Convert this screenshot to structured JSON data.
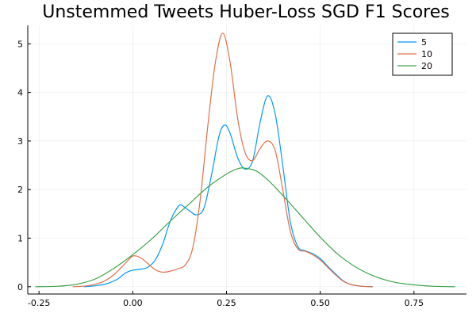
{
  "chart_data": {
    "type": "line",
    "title": "Unstemmed Tweets Huber-Loss SGD F1 Scores",
    "xlabel": "",
    "ylabel": "",
    "xlim": [
      -0.28,
      0.89
    ],
    "ylim": [
      -0.15,
      5.38
    ],
    "x_ticks": [
      -0.25,
      0.0,
      0.25,
      0.5,
      0.75
    ],
    "x_tick_labels": [
      "-0.25",
      "0.00",
      "0.25",
      "0.50",
      "0.75"
    ],
    "y_ticks": [
      0,
      1,
      2,
      3,
      4,
      5
    ],
    "y_tick_labels": [
      "0",
      "1",
      "2",
      "3",
      "4",
      "5"
    ],
    "grid": true,
    "legend_position": "top-right",
    "series": [
      {
        "name": "5",
        "color": "#009AFA",
        "points": [
          [
            -0.13,
            0.0
          ],
          [
            -0.1,
            0.02
          ],
          [
            -0.07,
            0.06
          ],
          [
            -0.04,
            0.16
          ],
          [
            -0.02,
            0.28
          ],
          [
            0.0,
            0.34
          ],
          [
            0.02,
            0.36
          ],
          [
            0.04,
            0.4
          ],
          [
            0.06,
            0.55
          ],
          [
            0.08,
            0.88
          ],
          [
            0.1,
            1.35
          ],
          [
            0.12,
            1.64
          ],
          [
            0.13,
            1.68
          ],
          [
            0.15,
            1.57
          ],
          [
            0.17,
            1.48
          ],
          [
            0.19,
            1.62
          ],
          [
            0.21,
            2.3
          ],
          [
            0.23,
            3.1
          ],
          [
            0.245,
            3.33
          ],
          [
            0.26,
            3.15
          ],
          [
            0.28,
            2.65
          ],
          [
            0.3,
            2.42
          ],
          [
            0.32,
            2.6
          ],
          [
            0.34,
            3.4
          ],
          [
            0.36,
            3.93
          ],
          [
            0.38,
            3.55
          ],
          [
            0.4,
            2.5
          ],
          [
            0.42,
            1.35
          ],
          [
            0.44,
            0.83
          ],
          [
            0.46,
            0.74
          ],
          [
            0.48,
            0.68
          ],
          [
            0.5,
            0.58
          ],
          [
            0.52,
            0.42
          ],
          [
            0.54,
            0.27
          ],
          [
            0.56,
            0.13
          ],
          [
            0.58,
            0.05
          ],
          [
            0.61,
            0.01
          ],
          [
            0.64,
            0.0
          ]
        ]
      },
      {
        "name": "10",
        "color": "#E26F46",
        "points": [
          [
            -0.16,
            0.0
          ],
          [
            -0.12,
            0.02
          ],
          [
            -0.08,
            0.1
          ],
          [
            -0.05,
            0.25
          ],
          [
            -0.02,
            0.48
          ],
          [
            0.0,
            0.63
          ],
          [
            0.02,
            0.6
          ],
          [
            0.04,
            0.48
          ],
          [
            0.06,
            0.35
          ],
          [
            0.08,
            0.3
          ],
          [
            0.1,
            0.32
          ],
          [
            0.12,
            0.37
          ],
          [
            0.14,
            0.45
          ],
          [
            0.16,
            0.8
          ],
          [
            0.18,
            1.8
          ],
          [
            0.2,
            3.3
          ],
          [
            0.22,
            4.6
          ],
          [
            0.24,
            5.22
          ],
          [
            0.26,
            4.6
          ],
          [
            0.28,
            3.45
          ],
          [
            0.3,
            2.75
          ],
          [
            0.32,
            2.6
          ],
          [
            0.34,
            2.85
          ],
          [
            0.36,
            3.0
          ],
          [
            0.38,
            2.8
          ],
          [
            0.4,
            2.0
          ],
          [
            0.42,
            1.15
          ],
          [
            0.44,
            0.78
          ],
          [
            0.46,
            0.73
          ],
          [
            0.48,
            0.66
          ],
          [
            0.5,
            0.55
          ],
          [
            0.52,
            0.4
          ],
          [
            0.54,
            0.25
          ],
          [
            0.56,
            0.12
          ],
          [
            0.58,
            0.05
          ],
          [
            0.61,
            0.01
          ],
          [
            0.64,
            0.0
          ]
        ]
      },
      {
        "name": "20",
        "color": "#3EA44E",
        "points": [
          [
            -0.26,
            0.0
          ],
          [
            -0.2,
            0.01
          ],
          [
            -0.15,
            0.05
          ],
          [
            -0.1,
            0.16
          ],
          [
            -0.05,
            0.38
          ],
          [
            0.0,
            0.66
          ],
          [
            0.05,
            0.98
          ],
          [
            0.1,
            1.35
          ],
          [
            0.15,
            1.7
          ],
          [
            0.2,
            2.05
          ],
          [
            0.25,
            2.32
          ],
          [
            0.28,
            2.43
          ],
          [
            0.3,
            2.44
          ],
          [
            0.33,
            2.38
          ],
          [
            0.36,
            2.2
          ],
          [
            0.4,
            1.88
          ],
          [
            0.45,
            1.45
          ],
          [
            0.5,
            1.02
          ],
          [
            0.55,
            0.65
          ],
          [
            0.6,
            0.38
          ],
          [
            0.65,
            0.2
          ],
          [
            0.7,
            0.09
          ],
          [
            0.75,
            0.04
          ],
          [
            0.8,
            0.01
          ],
          [
            0.86,
            0.0
          ]
        ]
      }
    ]
  }
}
